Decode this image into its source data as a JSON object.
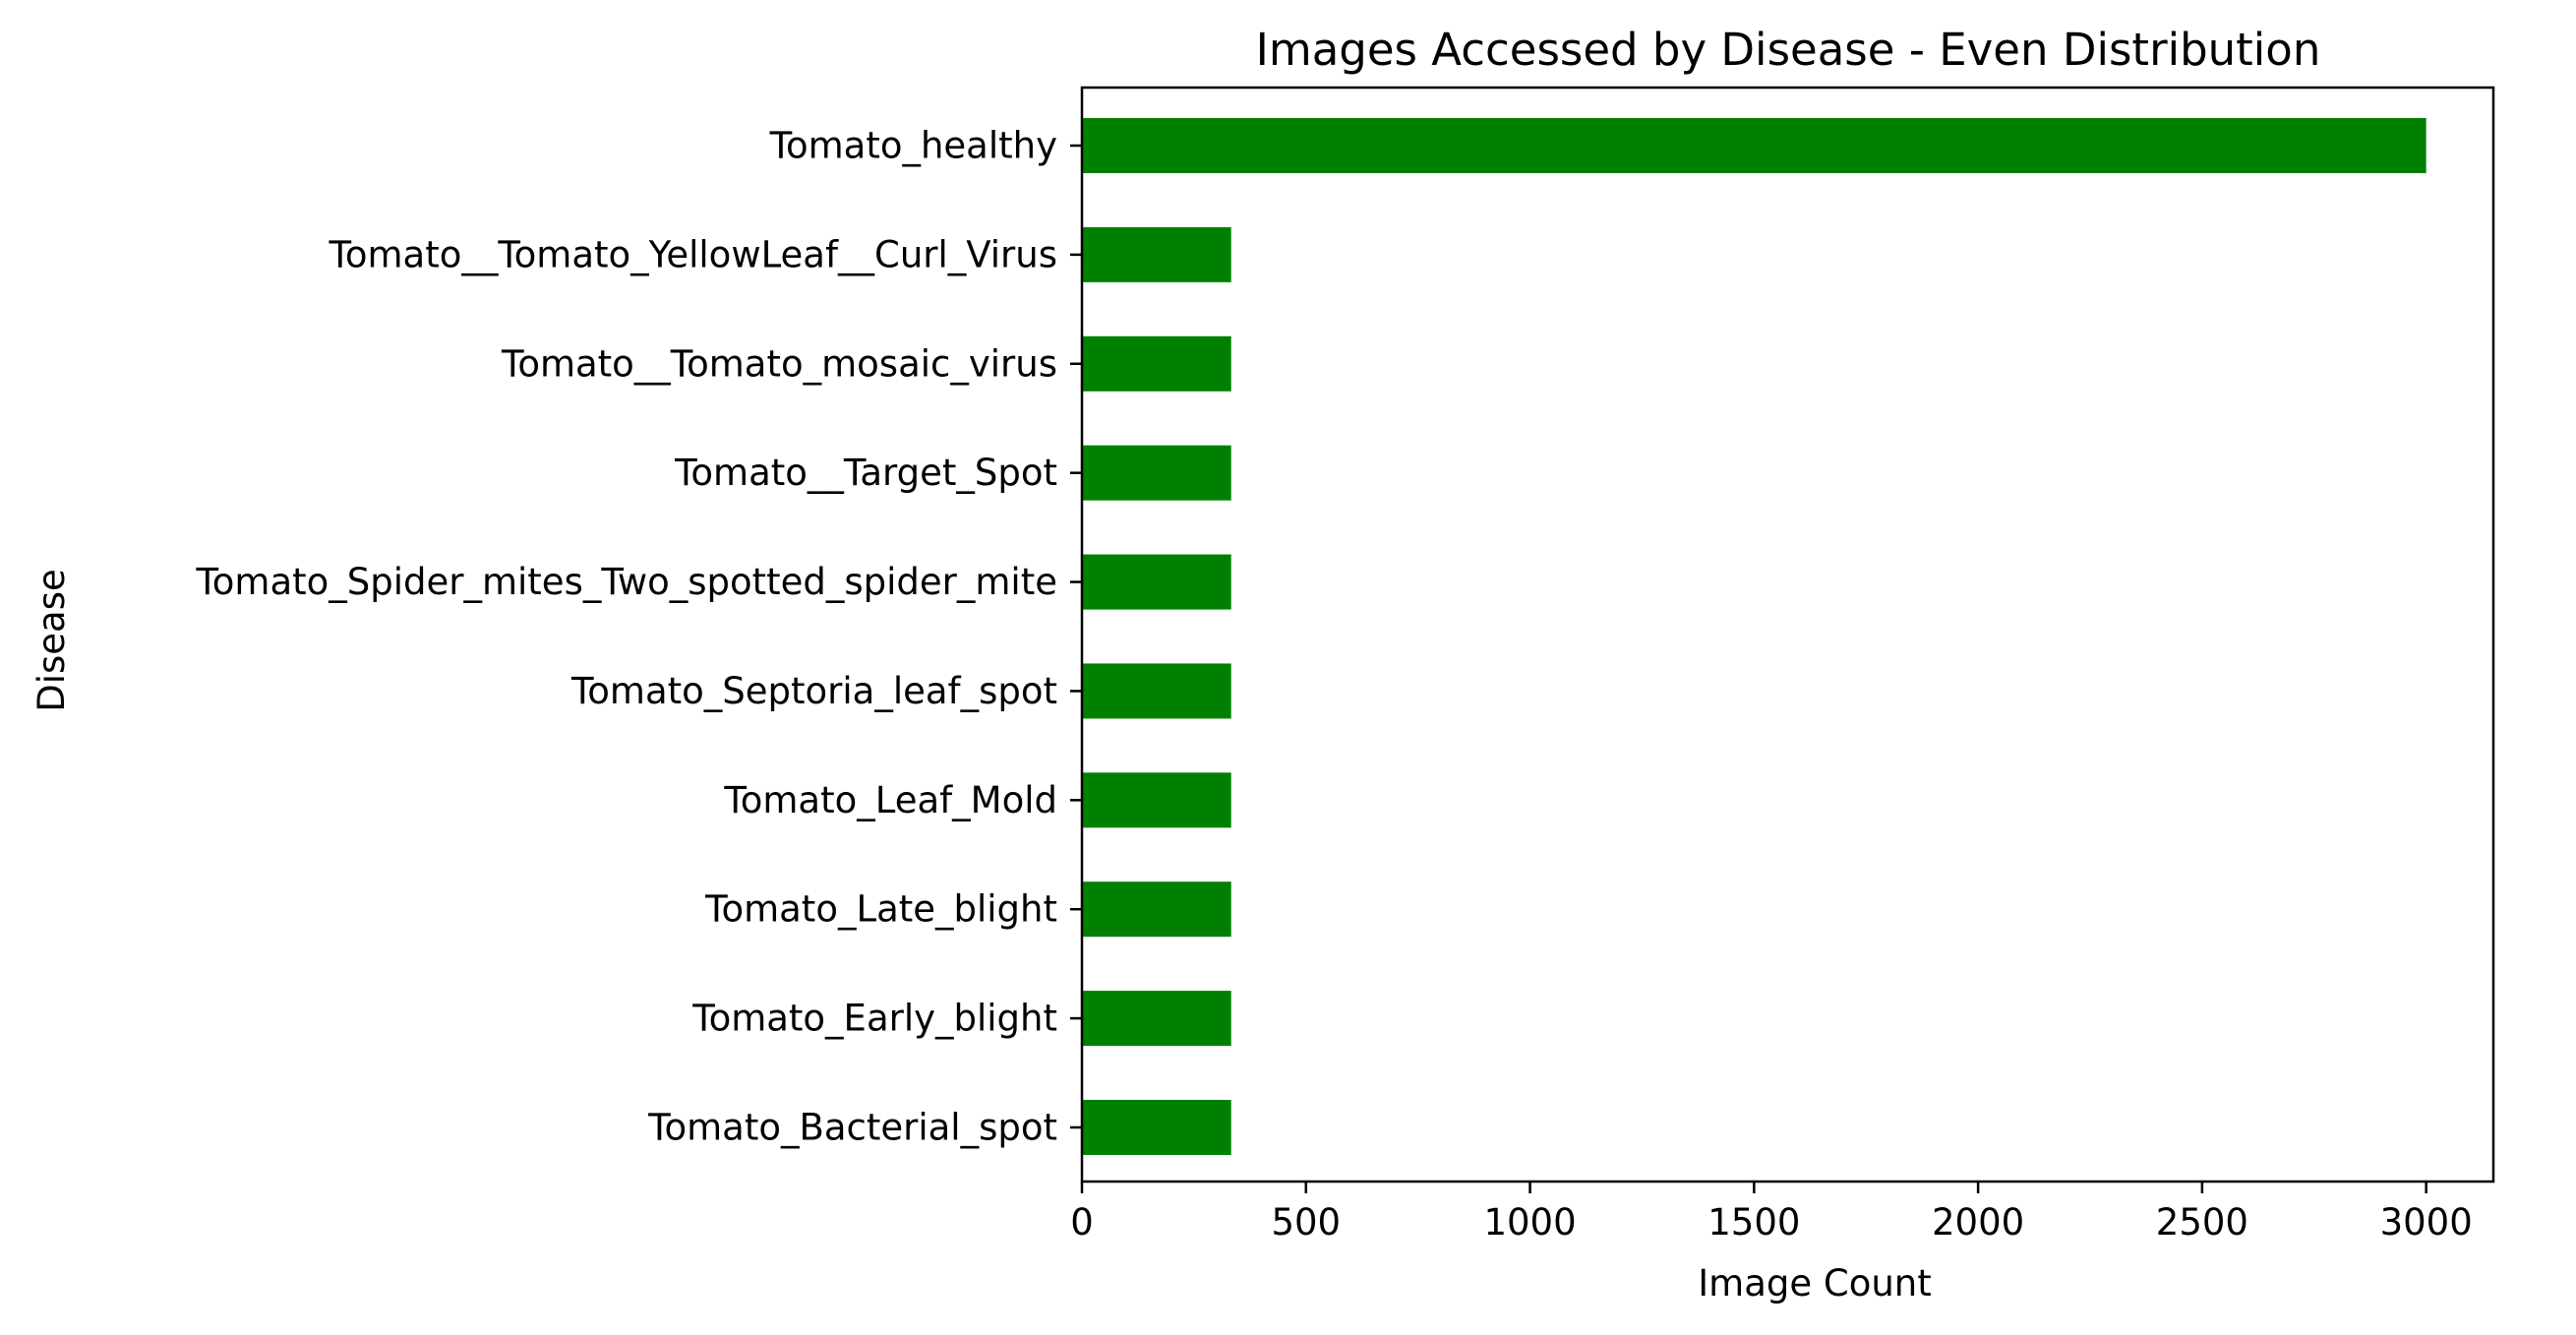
{
  "chart_data": {
    "type": "bar",
    "orientation": "horizontal",
    "title": "Images Accessed by Disease - Even Distribution",
    "xlabel": "Image Count",
    "ylabel": "Disease",
    "categories": [
      "Tomato_Bacterial_spot",
      "Tomato_Early_blight",
      "Tomato_Late_blight",
      "Tomato_Leaf_Mold",
      "Tomato_Septoria_leaf_spot",
      "Tomato_Spider_mites_Two_spotted_spider_mite",
      "Tomato__Target_Spot",
      "Tomato__Tomato_mosaic_virus",
      "Tomato__Tomato_YellowLeaf__Curl_Virus",
      "Tomato_healthy"
    ],
    "values": [
      333,
      333,
      333,
      333,
      333,
      333,
      333,
      333,
      333,
      3000
    ],
    "xlim": [
      0,
      3150
    ],
    "xticks": [
      0,
      500,
      1000,
      1500,
      2000,
      2500,
      3000
    ],
    "bar_color": "#008000",
    "grid": false,
    "legend": "none"
  }
}
